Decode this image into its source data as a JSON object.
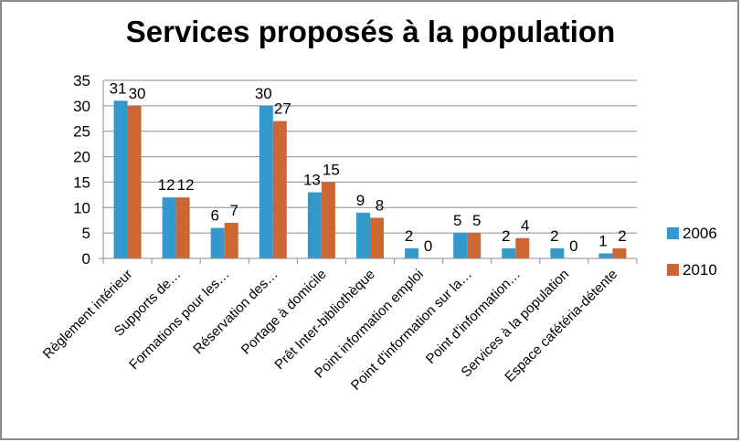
{
  "chart_data": {
    "type": "bar",
    "title": "Services proposés à la population",
    "xlabel": "",
    "ylabel": "",
    "ylim": [
      0,
      35
    ],
    "yticks": [
      0,
      5,
      10,
      15,
      20,
      25,
      30,
      35
    ],
    "grid": true,
    "legend_position": "right",
    "categories": [
      "Règlement intérieur",
      "Supports de…",
      "Formations pour les…",
      "Réservation des…",
      "Portage à domicile",
      "Prêt Inter-bibliothèque",
      "Point information emploi",
      "Point d'information sur la…",
      "Point d'information…",
      "Services à la population",
      "Espace cafétéria-détente"
    ],
    "series": [
      {
        "name": "2006",
        "color": "#3399cc",
        "values": [
          31,
          12,
          6,
          30,
          13,
          9,
          2,
          5,
          2,
          2,
          1
        ]
      },
      {
        "name": "2010",
        "color": "#cc6633",
        "values": [
          30,
          12,
          7,
          27,
          15,
          8,
          0,
          5,
          4,
          0,
          2
        ]
      }
    ]
  }
}
